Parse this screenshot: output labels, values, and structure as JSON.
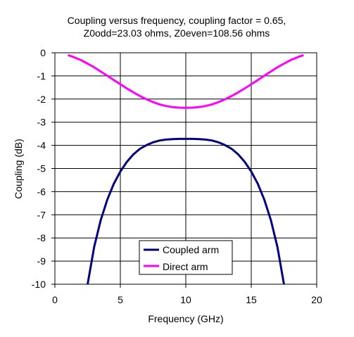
{
  "chart_data": {
    "type": "line",
    "title_lines": [
      "Coupling versus frequency, coupling factor = 0.65,",
      "Z0odd=23.03 ohms, Z0even=108.56 ohms"
    ],
    "xlabel": "Frequency (GHz)",
    "ylabel": "Coupling (dB)",
    "xlim": [
      0,
      20
    ],
    "ylim": [
      -10,
      0
    ],
    "xticks": [
      0,
      5,
      10,
      15,
      20
    ],
    "yticks": [
      0,
      -1,
      -2,
      -3,
      -4,
      -5,
      -6,
      -7,
      -8,
      -9,
      -10
    ],
    "grid": true,
    "legend_position": "lower-center",
    "series": [
      {
        "name": "Coupled arm",
        "color": "#000080",
        "x": [
          2.5,
          3,
          3.5,
          4,
          4.5,
          5,
          5.5,
          6,
          6.5,
          7,
          7.5,
          8,
          8.5,
          9,
          9.5,
          10,
          10.5,
          11,
          11.5,
          12,
          12.5,
          13,
          13.5,
          14,
          14.5,
          15,
          15.5,
          16,
          16.5,
          17,
          17.5
        ],
        "y": [
          -10.0,
          -8.39,
          -7.23,
          -6.35,
          -5.66,
          -5.13,
          -4.71,
          -4.39,
          -4.15,
          -3.99,
          -3.87,
          -3.79,
          -3.75,
          -3.73,
          -3.72,
          -3.72,
          -3.72,
          -3.73,
          -3.75,
          -3.79,
          -3.87,
          -3.99,
          -4.15,
          -4.39,
          -4.71,
          -5.13,
          -5.66,
          -6.35,
          -7.23,
          -8.39,
          -10.0
        ]
      },
      {
        "name": "Direct arm",
        "color": "#FF00FF",
        "x": [
          1,
          1.5,
          2,
          2.5,
          3,
          3.5,
          4,
          4.5,
          5,
          5.5,
          6,
          6.5,
          7,
          7.5,
          8,
          8.5,
          9,
          9.5,
          10,
          10.5,
          11,
          11.5,
          12,
          12.5,
          13,
          13.5,
          14,
          14.5,
          15,
          15.5,
          16,
          16.5,
          17,
          17.5,
          18,
          18.5,
          19
        ],
        "y": [
          -0.1,
          -0.2,
          -0.32,
          -0.47,
          -0.63,
          -0.81,
          -0.99,
          -1.18,
          -1.36,
          -1.54,
          -1.71,
          -1.87,
          -2.01,
          -2.13,
          -2.23,
          -2.3,
          -2.35,
          -2.37,
          -2.38,
          -2.37,
          -2.35,
          -2.3,
          -2.23,
          -2.13,
          -2.01,
          -1.87,
          -1.71,
          -1.54,
          -1.36,
          -1.18,
          -0.99,
          -0.81,
          -0.63,
          -0.47,
          -0.32,
          -0.2,
          -0.1
        ]
      }
    ]
  }
}
